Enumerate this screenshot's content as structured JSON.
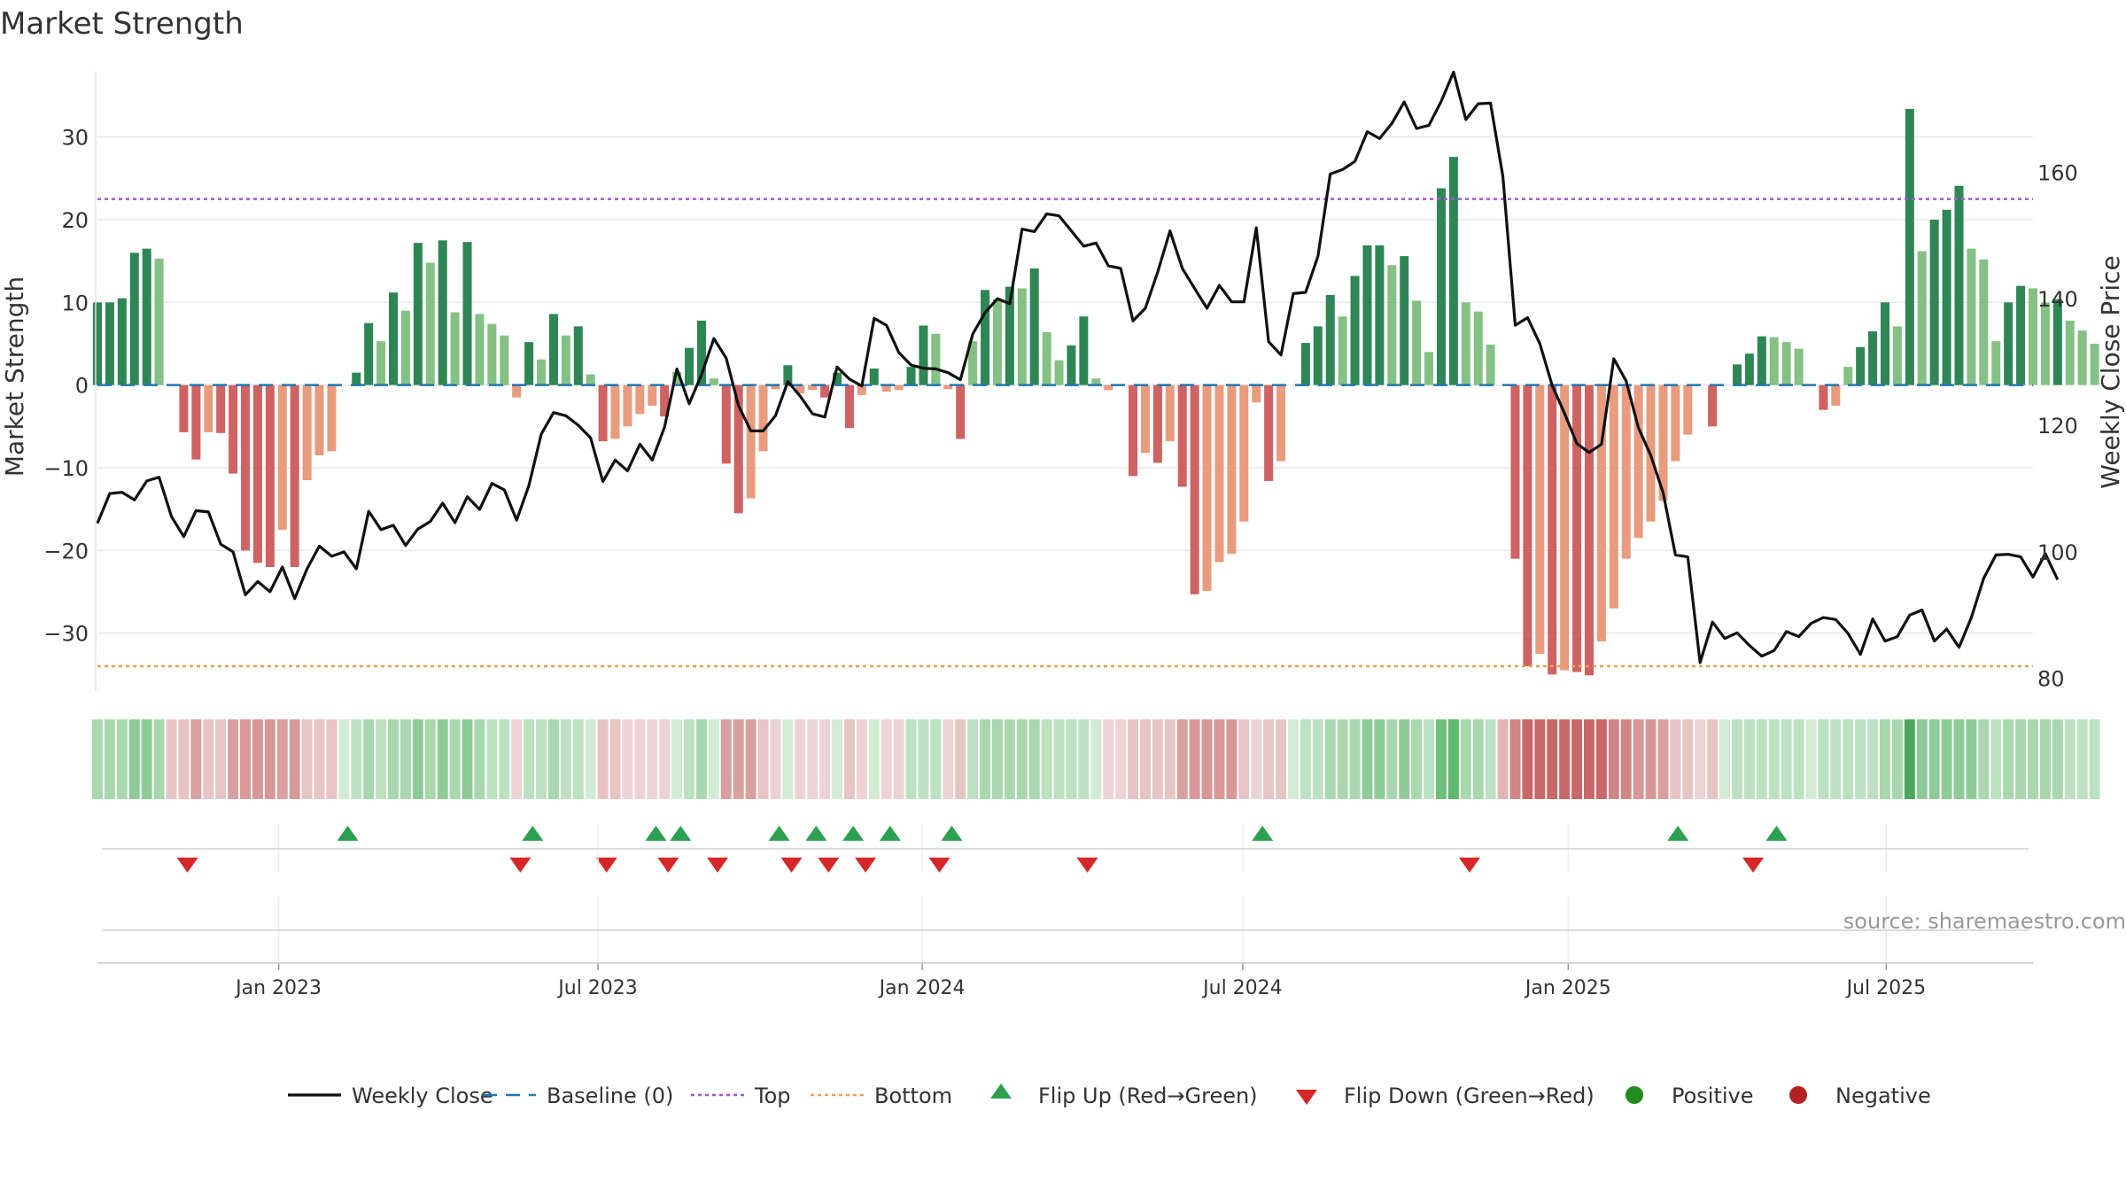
{
  "chart_data": {
    "type": "bar",
    "title": "Market Strength",
    "ylabel_left": "Market Strength",
    "ylabel_right": "Weekly Close Price",
    "source": "source: sharemaestro.com",
    "ylim_left": [
      -37,
      38
    ],
    "ylim_right": [
      78,
      176
    ],
    "yticks_left": [
      30,
      20,
      10,
      0,
      -10,
      -20,
      -30
    ],
    "yticks_left_labels": [
      "30",
      "20",
      "10",
      "0",
      "−10",
      "−20",
      "−30"
    ],
    "yticks_right": [
      160,
      140,
      120,
      100,
      80
    ],
    "yticks_right_labels": [
      "160",
      "140",
      "120",
      "100",
      "80"
    ],
    "x_start_week": 0,
    "x_end_week": 157,
    "xticks": [
      {
        "label": "Jan 2023",
        "week": 14.7
      },
      {
        "label": "Jul 2023",
        "week": 40.6
      },
      {
        "label": "Jan 2024",
        "week": 66.9
      },
      {
        "label": "Jul 2024",
        "week": 92.9
      },
      {
        "label": "Jan 2025",
        "week": 119.3
      },
      {
        "label": "Jul 2025",
        "week": 145.1
      }
    ],
    "top_threshold": 22.5,
    "bottom_threshold": -34,
    "baseline": 0,
    "strength": [
      10,
      10,
      10.5,
      16,
      16.5,
      15.3,
      0,
      -5.7,
      -9,
      -5.7,
      -5.8,
      -10.7,
      -20,
      -21.5,
      -22,
      -17.5,
      -22,
      -11.5,
      -8.5,
      -8,
      0,
      1.5,
      7.5,
      5.3,
      11.2,
      9,
      17.2,
      14.8,
      17.5,
      8.8,
      17.3,
      8.6,
      7.4,
      6,
      -1.5,
      5.2,
      3.1,
      8.6,
      6,
      7.1,
      1.3,
      -6.8,
      -6.5,
      -5,
      -3.5,
      -2.5,
      -3.8,
      1.6,
      4.5,
      7.8,
      0.8,
      -9.5,
      -15.5,
      -13.7,
      -8,
      -0.5,
      2.4,
      -1,
      -0.6,
      -1.5,
      1.5,
      -5.2,
      -1.2,
      2,
      -0.8,
      -0.6,
      2.2,
      7.2,
      6.2,
      -0.5,
      -6.5,
      5.3,
      11.5,
      10.4,
      11.9,
      11.7,
      14.1,
      6.4,
      3,
      4.8,
      8.3,
      0.8,
      -0.6,
      0,
      -11,
      -8.2,
      -9.4,
      -6.8,
      -12.3,
      -25.3,
      -24.9,
      -21.4,
      -20.4,
      -16.5,
      -2.1,
      -11.6,
      -9.2,
      0,
      5.1,
      7.1,
      10.9,
      8.3,
      13.2,
      16.9,
      16.9,
      14.5,
      15.6,
      10.2,
      4,
      23.8,
      27.6,
      10,
      8.9,
      4.9,
      0,
      -21,
      -34,
      -32.5,
      -35,
      -34.5,
      -34.7,
      -35.1,
      -31,
      -27,
      -21,
      -18.5,
      -16.5,
      -14,
      -9.2,
      -6,
      0,
      -5,
      0,
      2.5,
      3.8,
      5.9,
      5.8,
      5.2,
      4.4,
      0,
      -3,
      -2.5,
      2.2,
      4.6,
      6.5,
      10,
      7.1,
      33.4,
      16.2,
      20,
      21.2,
      24.1,
      16.5,
      15.2,
      5.3,
      10,
      12,
      11.7,
      10,
      10.4,
      7.8,
      6.6,
      5
    ],
    "close": [
      104.5,
      109.2,
      109.4,
      108.2,
      111.2,
      111.8,
      105.6,
      102.4,
      106.5,
      106.3,
      101.2,
      100,
      93.2,
      95.3,
      93.7,
      97.6,
      92.6,
      97.3,
      100.9,
      99.3,
      100,
      97.3,
      106.4,
      103.5,
      104.2,
      101,
      103.6,
      104.8,
      107.7,
      104.6,
      108.7,
      106.7,
      110.8,
      109.8,
      105,
      110.5,
      118.6,
      122,
      121.5,
      120,
      118,
      111.1,
      114.5,
      112.8,
      117,
      114.5,
      119.7,
      128.9,
      123.4,
      128,
      133.7,
      130.6,
      123.1,
      119.1,
      119.1,
      121.5,
      126.9,
      124.6,
      121.8,
      121.3,
      129.2,
      127.3,
      126.2,
      136.9,
      135.8,
      131.5,
      129.5,
      129,
      128.9,
      128.3,
      127.2,
      134.4,
      137.8,
      140,
      139.2,
      151,
      150.6,
      153.4,
      153.1,
      150.7,
      148.3,
      148.8,
      145.2,
      144.8,
      136.5,
      138.5,
      144.2,
      150.7,
      144.8,
      141.6,
      138.5,
      142.1,
      139.5,
      139.5,
      151.2,
      133.2,
      131.1,
      140.8,
      141,
      146.7,
      159.7,
      160.4,
      161.7,
      166.4,
      165.3,
      167.7,
      171.1,
      166.9,
      167.4,
      171.2,
      175.8,
      168.3,
      170.8,
      170.9,
      159.3,
      135.8,
      137,
      132.9,
      126.3,
      121.9,
      117.1,
      115.7,
      117,
      130.5,
      127,
      119.6,
      115.2,
      109.3,
      99.5,
      99.2,
      82.5,
      88.9,
      86.3,
      87.2,
      85.2,
      83.5,
      84.4,
      87.4,
      86.6,
      88.7,
      89.6,
      89.3,
      87.1,
      83.8,
      89.4,
      85.9,
      86.6,
      90,
      90.8,
      85.9,
      87.8,
      84.9,
      89.6,
      95.8,
      99.5,
      99.6,
      99.2,
      96,
      99.7,
      95.6
    ],
    "band_colors": [
      "#a9d7ae",
      "#a9d7ae",
      "#a9d7ae",
      "#8fcb98",
      "#8fcb98",
      "#a9d7ae",
      "#e7c5c5",
      "#e7c5c5",
      "#d9a0a0",
      "#e7c5c5",
      "#e7c5c5",
      "#d9a0a0",
      "#d99898",
      "#d99898",
      "#d99898",
      "#d9a0a0",
      "#d99898",
      "#e7c5c5",
      "#e7c5c5",
      "#e7c5c5",
      "#d2ebd4",
      "#bde2c2",
      "#a9d7ae",
      "#bde2c2",
      "#a9d7ae",
      "#a9d7ae",
      "#8fcb98",
      "#a9d7ae",
      "#8fcb98",
      "#a9d7ae",
      "#8fcb98",
      "#a9d7ae",
      "#bde2c2",
      "#bde2c2",
      "#edd3d3",
      "#bde2c2",
      "#bde2c2",
      "#a9d7ae",
      "#bde2c2",
      "#bde2c2",
      "#d2ebd4",
      "#e7c5c5",
      "#e7c5c5",
      "#edd3d3",
      "#edd3d3",
      "#edd3d3",
      "#edd3d3",
      "#d2ebd4",
      "#bde2c2",
      "#a9d7ae",
      "#d2ebd4",
      "#d9a0a0",
      "#d9a0a0",
      "#d9a0a0",
      "#e7c5c5",
      "#edd3d3",
      "#d2ebd4",
      "#edd3d3",
      "#edd3d3",
      "#edd3d3",
      "#d2ebd4",
      "#e7c5c5",
      "#edd3d3",
      "#d2ebd4",
      "#edd3d3",
      "#edd3d3",
      "#bde2c2",
      "#bde2c2",
      "#bde2c2",
      "#edd3d3",
      "#e7c5c5",
      "#bde2c2",
      "#a9d7ae",
      "#a9d7ae",
      "#a9d7ae",
      "#a9d7ae",
      "#a9d7ae",
      "#bde2c2",
      "#bde2c2",
      "#bde2c2",
      "#bde2c2",
      "#d2ebd4",
      "#edd3d3",
      "#edd3d3",
      "#e7c5c5",
      "#e7c5c5",
      "#e7c5c5",
      "#e7c5c5",
      "#d9a0a0",
      "#d99898",
      "#d99898",
      "#d99898",
      "#d99898",
      "#e7c5c5",
      "#edd3d3",
      "#e7c5c5",
      "#e7c5c5",
      "#d2ebd4",
      "#bde2c2",
      "#bde2c2",
      "#a9d7ae",
      "#a9d7ae",
      "#a9d7ae",
      "#8fcb98",
      "#8fcb98",
      "#a9d7ae",
      "#8fcb98",
      "#a9d7ae",
      "#bde2c2",
      "#6fbf7c",
      "#5fb86d",
      "#a9d7ae",
      "#a9d7ae",
      "#bde2c2",
      "#e3b4b4",
      "#d08686",
      "#c86868",
      "#c86868",
      "#c86868",
      "#c86868",
      "#c86868",
      "#c86868",
      "#c86868",
      "#d08686",
      "#d08686",
      "#d99898",
      "#d99898",
      "#d9a0a0",
      "#e7c5c5",
      "#e7c5c5",
      "#edd3d3",
      "#e7c5c5",
      "#d2ebd4",
      "#bde2c2",
      "#bde2c2",
      "#bde2c2",
      "#bde2c2",
      "#bde2c2",
      "#bde2c2",
      "#d2ebd4",
      "#bde2c2",
      "#bde2c2",
      "#bde2c2",
      "#bde2c2",
      "#bde2c2",
      "#a9d7ae",
      "#a9d7ae",
      "#4ea75e",
      "#8fcb98",
      "#8fcb98",
      "#8fcb98",
      "#8fcb98",
      "#8fcb98",
      "#a9d7ae",
      "#bde2c2",
      "#a9d7ae",
      "#a9d7ae",
      "#a9d7ae",
      "#a9d7ae",
      "#a9d7ae",
      "#bde2c2",
      "#bde2c2",
      "#bde2c2"
    ],
    "flip_up_weeks": [
      20.3,
      35.3,
      45.3,
      47.3,
      55.3,
      58.3,
      61.3,
      64.3,
      69.3,
      94.5,
      128.2,
      136.2
    ],
    "flip_down_weeks": [
      7.3,
      34.3,
      41.3,
      46.3,
      50.3,
      56.3,
      59.3,
      62.3,
      68.3,
      80.3,
      111.3,
      134.3
    ],
    "colors": {
      "bar_pos_strong": "#2e8655",
      "bar_pos_weak": "#85c185",
      "bar_neg_strong": "#cf6262",
      "bar_neg_weak": "#e99b7e",
      "close_line": "#111111",
      "baseline": "#1f77b4",
      "top": "#a855d6",
      "bottom": "#f0a050",
      "flip_up": "#2ca050",
      "flip_down": "#d62728",
      "positive": "#228b22",
      "negative": "#b22222",
      "grid": "#e9e9e9",
      "text": "#333333"
    },
    "legend": {
      "position": "bottom",
      "items": [
        {
          "label": "Weekly Close",
          "kind": "line"
        },
        {
          "label": "Baseline (0)",
          "kind": "dash"
        },
        {
          "label": "Top",
          "kind": "dot-top"
        },
        {
          "label": "Bottom",
          "kind": "dot-bottom"
        },
        {
          "label": "Flip Up (Red→Green)",
          "kind": "tri-up"
        },
        {
          "label": "Flip Down (Green→Red)",
          "kind": "tri-down"
        },
        {
          "label": "Positive",
          "kind": "circle-pos"
        },
        {
          "label": "Negative",
          "kind": "circle-neg"
        }
      ]
    }
  }
}
